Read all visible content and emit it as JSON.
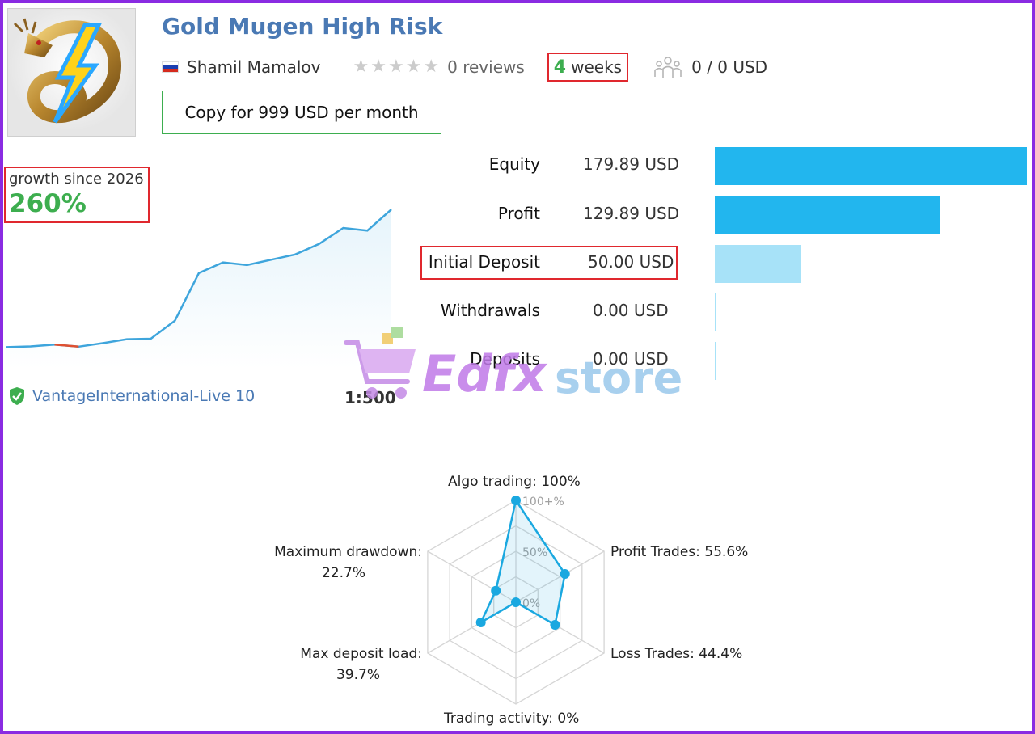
{
  "signal": {
    "title": "Gold Mugen High Risk",
    "author": "Shamil Mamalov",
    "rating_stars": 0,
    "reviews": "0 reviews",
    "weeks_number": "4",
    "weeks_label": "weeks",
    "subscribers": "0 / 0 USD",
    "copy_button": "Copy for 999 USD per month"
  },
  "growth": {
    "label": "growth since 2026",
    "value": "260%"
  },
  "broker": {
    "server": "VantageInternational-Live 10",
    "leverage": "1:500"
  },
  "stats": [
    {
      "label": "Equity",
      "value": "179.89 USD",
      "amount": 179.89,
      "color": "#22b6ee"
    },
    {
      "label": "Profit",
      "value": "129.89 USD",
      "amount": 129.89,
      "color": "#22b6ee"
    },
    {
      "label": "Initial Deposit",
      "value": "50.00 USD",
      "amount": 50.0,
      "color": "#a7e2f8"
    },
    {
      "label": "Withdrawals",
      "value": "0.00 USD",
      "amount": 0,
      "color": "#a7e2f8"
    },
    {
      "label": "Deposits",
      "value": "0.00 USD",
      "amount": 0,
      "color": "#a7e2f8"
    }
  ],
  "watermark": {
    "part1": "Edfx",
    "part2": "store"
  },
  "radar": {
    "labels": {
      "algo": "Algo trading: 100%",
      "profit": "Profit Trades: 55.6%",
      "loss": "Loss Trades: 44.4%",
      "activity": "Trading activity: 0%",
      "load_name": "Max deposit load:",
      "load_value": "39.7%",
      "drawdown_name": "Maximum drawdown:",
      "drawdown_value": "22.7%"
    },
    "scale_labels": [
      "100+%",
      "50%",
      "0%"
    ],
    "values": [
      100,
      55.6,
      44.4,
      0,
      39.7,
      22.7
    ],
    "color": "#1aa8e0"
  },
  "growth_series": [
    0,
    0.3,
    1.0,
    0.2,
    1.5,
    3.0,
    3.2,
    10,
    28,
    32,
    31,
    33,
    35,
    39,
    45,
    44,
    52
  ]
}
